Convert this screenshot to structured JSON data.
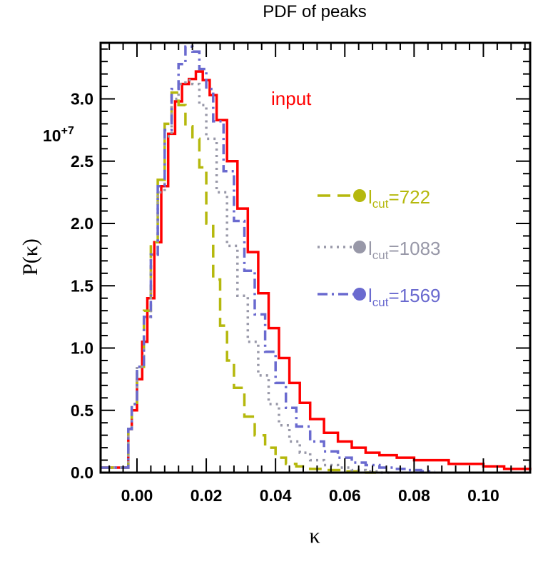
{
  "chart_data": {
    "type": "line",
    "title": "PDF of peaks",
    "xlabel": "κ",
    "ylabel_prefix": "P(",
    "ylabel_symbol": "κ",
    "ylabel_suffix": ")",
    "xlim": [
      -0.0105,
      0.1135
    ],
    "ylim": [
      0,
      3.45
    ],
    "y_scale_label": "10+7",
    "y_scale_base": "10",
    "y_scale_exp": "+7",
    "x_ticks": [
      0.0,
      0.02,
      0.04,
      0.06,
      0.08,
      0.1
    ],
    "x_tick_labels": [
      "0.00",
      "0.02",
      "0.04",
      "0.06",
      "0.08",
      "0.10"
    ],
    "y_ticks": [
      0.0,
      0.5,
      1.0,
      1.5,
      2.0,
      2.5,
      3.0
    ],
    "y_tick_labels": [
      "0.0",
      "0.5",
      "1.0",
      "1.5",
      "2.0",
      "2.5",
      "3.0"
    ],
    "annotation": "input",
    "series": [
      {
        "name": "input",
        "color": "#ff0000",
        "dash": "solid",
        "x": [
          -0.0105,
          -0.0035,
          -0.0025,
          -0.0015,
          0.0,
          0.0015,
          0.003,
          0.005,
          0.007,
          0.009,
          0.011,
          0.013,
          0.015,
          0.017,
          0.019,
          0.021,
          0.023,
          0.026,
          0.029,
          0.032,
          0.035,
          0.038,
          0.041,
          0.044,
          0.047,
          0.05,
          0.054,
          0.058,
          0.062,
          0.066,
          0.07,
          0.075,
          0.08,
          0.09,
          0.1,
          0.106,
          0.1135
        ],
        "y": [
          0.04,
          0.04,
          0.35,
          0.5,
          0.75,
          1.05,
          1.4,
          1.85,
          2.3,
          2.72,
          2.98,
          3.12,
          3.16,
          3.22,
          3.15,
          3.03,
          2.83,
          2.5,
          2.12,
          1.77,
          1.44,
          1.16,
          0.92,
          0.72,
          0.56,
          0.43,
          0.32,
          0.25,
          0.2,
          0.16,
          0.14,
          0.12,
          0.1,
          0.07,
          0.05,
          0.03,
          0.02
        ]
      },
      {
        "name": "l_cut=722",
        "color": "#b5b80d",
        "dash": "long-dash",
        "legend_main": "l",
        "legend_sub": "cut",
        "legend_value": "=722",
        "x": [
          -0.0105,
          -0.0035,
          -0.0025,
          -0.0015,
          0.0,
          0.002,
          0.004,
          0.006,
          0.008,
          0.01,
          0.012,
          0.014,
          0.016,
          0.018,
          0.02,
          0.022,
          0.024,
          0.026,
          0.028,
          0.031,
          0.034,
          0.037,
          0.04,
          0.043,
          0.046,
          0.05,
          0.055,
          0.06,
          0.065
        ],
        "y": [
          0.04,
          0.04,
          0.35,
          0.55,
          0.85,
          1.3,
          1.85,
          2.35,
          2.8,
          3.05,
          2.95,
          2.78,
          2.68,
          2.45,
          2.0,
          1.55,
          1.18,
          0.9,
          0.68,
          0.45,
          0.3,
          0.2,
          0.12,
          0.07,
          0.05,
          0.03,
          0.02,
          0.01,
          0.0
        ]
      },
      {
        "name": "l_cut=1083",
        "color": "#9898a8",
        "dash": "dotted",
        "legend_main": "l",
        "legend_sub": "cut",
        "legend_value": "=1083",
        "x": [
          -0.0105,
          -0.0035,
          -0.0025,
          -0.0015,
          0.0,
          0.002,
          0.004,
          0.006,
          0.008,
          0.01,
          0.012,
          0.014,
          0.016,
          0.018,
          0.02,
          0.023,
          0.026,
          0.029,
          0.032,
          0.035,
          0.038,
          0.041,
          0.044,
          0.047,
          0.05,
          0.054,
          0.058,
          0.062,
          0.066,
          0.07
        ],
        "y": [
          0.04,
          0.04,
          0.35,
          0.55,
          0.85,
          1.25,
          1.75,
          2.25,
          2.7,
          3.0,
          3.12,
          3.15,
          3.12,
          2.95,
          2.68,
          2.25,
          1.82,
          1.42,
          1.05,
          0.78,
          0.55,
          0.38,
          0.25,
          0.16,
          0.1,
          0.06,
          0.04,
          0.02,
          0.01,
          0.0
        ]
      },
      {
        "name": "l_cut=1569",
        "color": "#6a6acf",
        "dash": "dash-dot",
        "legend_main": "l",
        "legend_sub": "cut",
        "legend_value": "=1569",
        "x": [
          -0.0105,
          -0.0035,
          -0.0025,
          -0.0015,
          0.0,
          0.002,
          0.004,
          0.006,
          0.008,
          0.01,
          0.012,
          0.014,
          0.016,
          0.018,
          0.02,
          0.022,
          0.025,
          0.028,
          0.031,
          0.034,
          0.037,
          0.04,
          0.043,
          0.046,
          0.05,
          0.054,
          0.058,
          0.062,
          0.066,
          0.07,
          0.074,
          0.078,
          0.082
        ],
        "y": [
          0.04,
          0.04,
          0.35,
          0.55,
          0.85,
          1.25,
          1.75,
          2.3,
          2.75,
          3.08,
          3.28,
          3.42,
          3.38,
          3.24,
          3.08,
          2.82,
          2.42,
          2.02,
          1.62,
          1.27,
          0.97,
          0.72,
          0.52,
          0.37,
          0.25,
          0.17,
          0.12,
          0.08,
          0.06,
          0.04,
          0.03,
          0.02,
          0.01
        ]
      }
    ]
  }
}
